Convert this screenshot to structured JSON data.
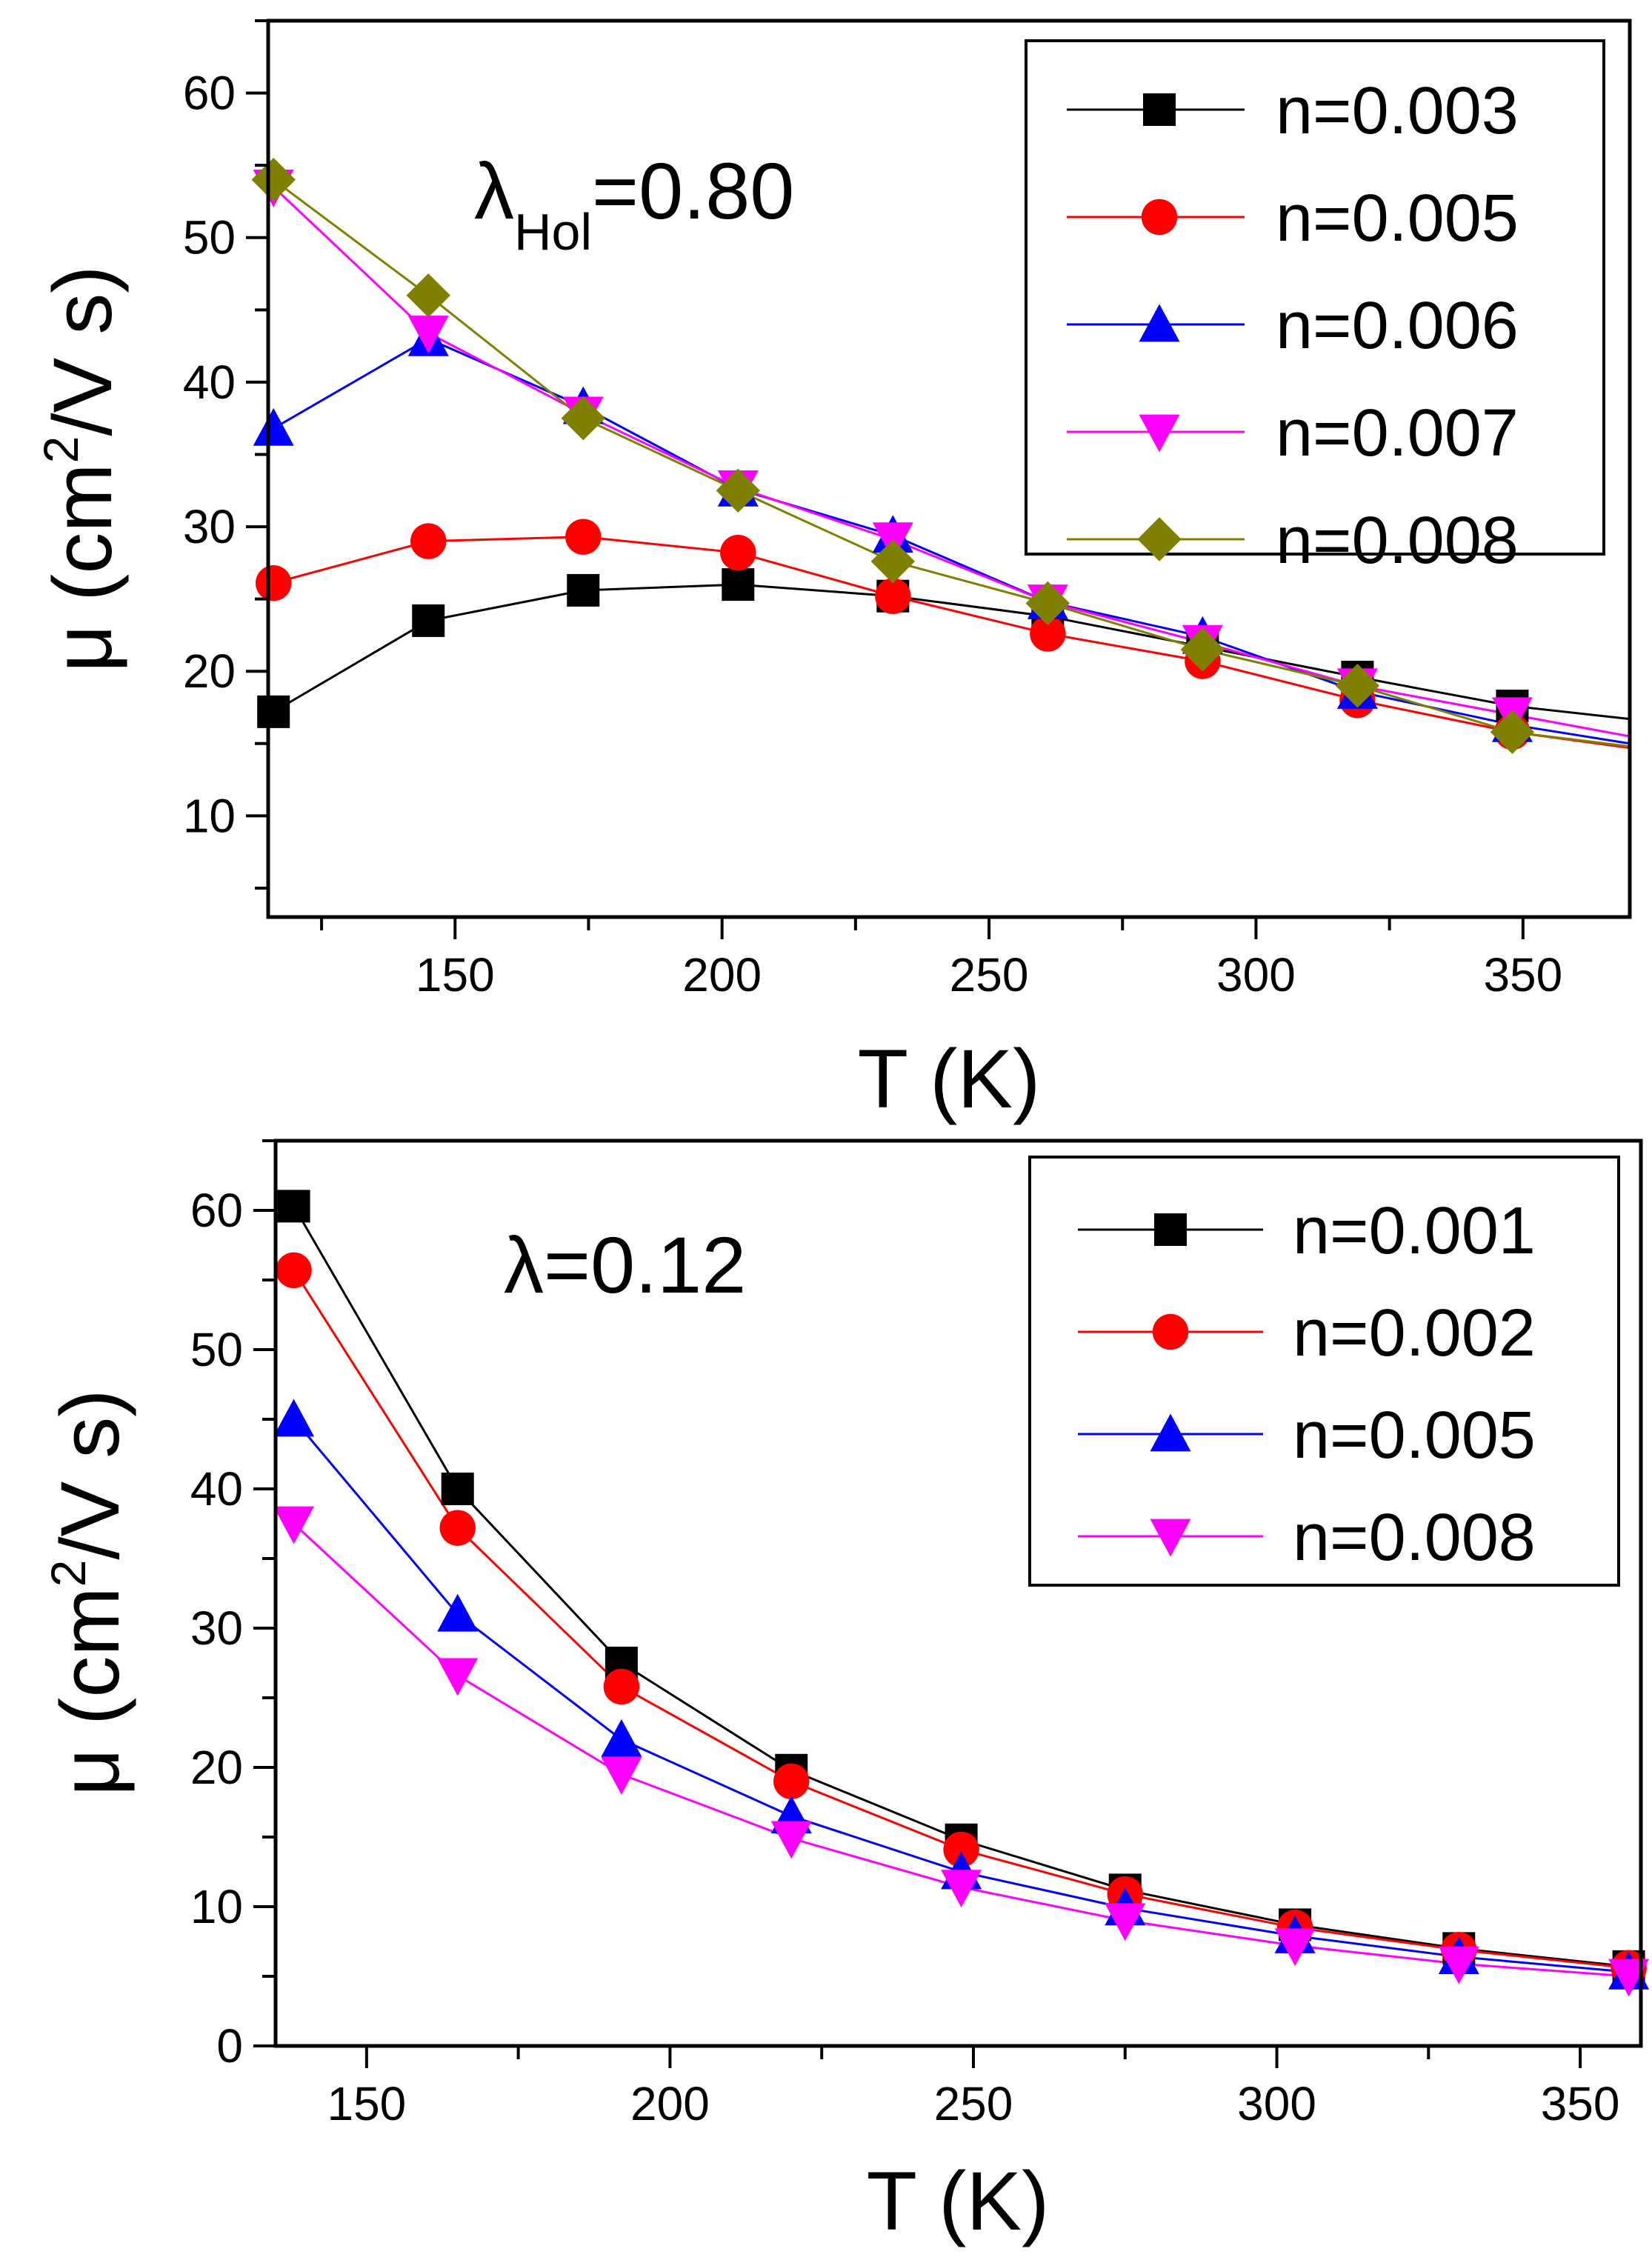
{
  "chart_data": [
    {
      "type": "line",
      "annotation": {
        "main": "λ",
        "sub": "Hol",
        "rest": "=0.80"
      },
      "xlabel": "T (K)",
      "ylabel": {
        "pre": "μ (cm",
        "sup": "2",
        "post": "/V s)"
      },
      "xlim": [
        115,
        370
      ],
      "ylim": [
        3,
        65
      ],
      "xticks": [
        150,
        200,
        250,
        300,
        350
      ],
      "yticks": [
        10,
        20,
        30,
        40,
        50,
        60
      ],
      "legend_position": "top-right",
      "series": [
        {
          "name": "n=0.003",
          "color": "#000000",
          "marker": "square",
          "x": [
            116,
            145,
            174,
            203,
            232,
            261,
            290,
            319,
            348,
            370
          ],
          "y": [
            17.2,
            23.5,
            25.6,
            26.0,
            25.2,
            23.8,
            21.7,
            19.6,
            17.6,
            16.7
          ]
        },
        {
          "name": "n=0.005",
          "color": "#ff0000",
          "marker": "circle",
          "x": [
            116,
            145,
            174,
            203,
            232,
            261,
            290,
            319,
            348,
            370
          ],
          "y": [
            26.1,
            29.0,
            29.3,
            28.2,
            25.2,
            22.6,
            20.7,
            18.0,
            15.8,
            14.7
          ]
        },
        {
          "name": "n=0.006",
          "color": "#0000ff",
          "marker": "triangle-up",
          "x": [
            116,
            145,
            174,
            203,
            232,
            261,
            290,
            319,
            348,
            370
          ],
          "y": [
            36.8,
            43.0,
            38.3,
            32.6,
            29.4,
            24.8,
            22.4,
            18.6,
            16.3,
            15.0
          ]
        },
        {
          "name": "n=0.007",
          "color": "#ff00ff",
          "marker": "triangle-down",
          "x": [
            116,
            145,
            174,
            203,
            232,
            261,
            290,
            319,
            348,
            370
          ],
          "y": [
            53.5,
            43.4,
            37.8,
            32.7,
            29.1,
            24.8,
            22.0,
            19.0,
            17.0,
            15.5
          ]
        },
        {
          "name": "n=0.008",
          "color": "#808000",
          "marker": "diamond",
          "x": [
            116,
            145,
            174,
            203,
            232,
            261,
            290,
            319,
            348,
            370
          ],
          "y": [
            54.0,
            46.0,
            37.5,
            32.5,
            27.6,
            24.7,
            21.5,
            19.0,
            15.8,
            14.8
          ]
        }
      ]
    },
    {
      "type": "line",
      "annotation": {
        "main": "λ",
        "sub": "",
        "rest": "=0.12"
      },
      "xlabel": "T (K)",
      "ylabel": {
        "pre": "μ (cm",
        "sup": "2",
        "post": "/V s)"
      },
      "xlim": [
        135,
        360
      ],
      "ylim": [
        0,
        65
      ],
      "xticks": [
        150,
        200,
        250,
        300,
        350
      ],
      "yticks": [
        0,
        10,
        20,
        30,
        40,
        50,
        60
      ],
      "legend_position": "top-right",
      "series": [
        {
          "name": "n=0.001",
          "color": "#000000",
          "marker": "square",
          "x": [
            138,
            165,
            192,
            220,
            248,
            275,
            303,
            330,
            358
          ],
          "y": [
            60.3,
            40.0,
            27.5,
            19.8,
            14.8,
            11.2,
            8.7,
            7.0,
            5.7
          ]
        },
        {
          "name": "n=0.002",
          "color": "#ff0000",
          "marker": "circle",
          "x": [
            138,
            165,
            192,
            220,
            248,
            275,
            303,
            330,
            358
          ],
          "y": [
            55.7,
            37.2,
            25.8,
            19.0,
            14.1,
            10.9,
            8.5,
            6.9,
            5.6
          ]
        },
        {
          "name": "n=0.005",
          "color": "#0000ff",
          "marker": "triangle-up",
          "x": [
            138,
            165,
            192,
            220,
            248,
            275,
            303,
            330,
            358
          ],
          "y": [
            45.0,
            31.0,
            22.0,
            16.5,
            12.5,
            9.9,
            7.9,
            6.4,
            5.3
          ]
        },
        {
          "name": "n=0.008",
          "color": "#ff00ff",
          "marker": "triangle-down",
          "x": [
            138,
            165,
            192,
            220,
            248,
            275,
            303,
            330,
            358
          ],
          "y": [
            37.5,
            26.6,
            19.5,
            14.9,
            11.4,
            9.0,
            7.2,
            5.9,
            5.0
          ]
        }
      ]
    }
  ]
}
